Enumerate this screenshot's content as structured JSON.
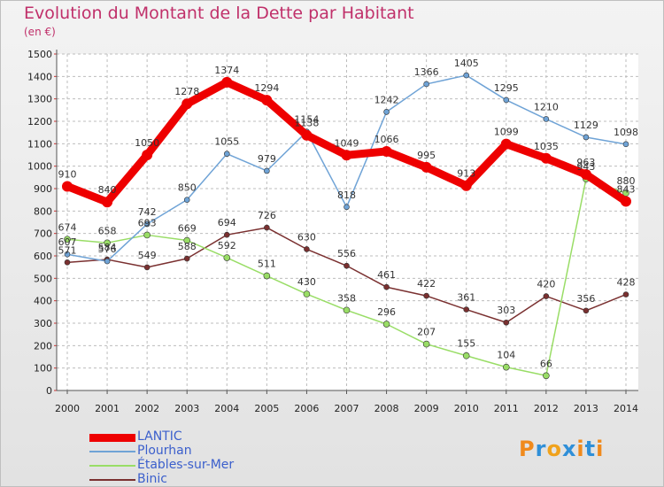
{
  "title": "Evolution du Montant de la Dette par Habitant",
  "unit": "(en €)",
  "logo": {
    "text": "Proxiti",
    "letter_colors": [
      "#f08a1c",
      "#2f8fd8",
      "#f0a21c",
      "#2f8fd8",
      "#f08a1c",
      "#2f8fd8",
      "#f08a1c"
    ]
  },
  "chart_data": {
    "type": "line",
    "title": "Evolution du Montant de la Dette par Habitant",
    "ylabel": "(en €)",
    "xlabel": "",
    "ylim": [
      0,
      1500
    ],
    "yticks": [
      0,
      100,
      200,
      300,
      400,
      500,
      600,
      700,
      800,
      900,
      1000,
      1100,
      1200,
      1300,
      1400,
      1500
    ],
    "grid": true,
    "legend_position": "bottom-left",
    "categories": [
      "2000",
      "2001",
      "2002",
      "2003",
      "2004",
      "2005",
      "2006",
      "2007",
      "2008",
      "2009",
      "2010",
      "2011",
      "2012",
      "2013",
      "2014"
    ],
    "series": [
      {
        "name": "LANTIC",
        "color": "#ee0000",
        "values": [
          910,
          840,
          1050,
          1278,
          1374,
          1294,
          1138,
          1049,
          1066,
          995,
          913,
          1099,
          1035,
          963,
          843
        ]
      },
      {
        "name": "Plourhan",
        "color": "#6fa3d6",
        "values": [
          607,
          576,
          742,
          850,
          1055,
          979,
          1154,
          818,
          1242,
          1366,
          1405,
          1295,
          1210,
          1129,
          1098
        ]
      },
      {
        "name": "Étables-sur-Mer",
        "color": "#99dd66",
        "values": [
          674,
          658,
          693,
          669,
          592,
          511,
          430,
          358,
          296,
          207,
          155,
          104,
          66,
          943,
          880
        ]
      },
      {
        "name": "Binic",
        "color": "#7a3030",
        "values": [
          571,
          584,
          549,
          588,
          694,
          726,
          630,
          556,
          461,
          422,
          361,
          303,
          420,
          356,
          428
        ]
      }
    ]
  }
}
